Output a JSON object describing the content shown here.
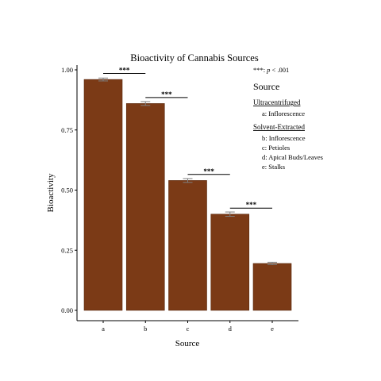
{
  "chart_data": {
    "type": "bar",
    "title": "Bioactivity of Cannabis Sources",
    "xlabel": "Source",
    "ylabel": "Bioactivity",
    "categories": [
      "a",
      "b",
      "c",
      "d",
      "e"
    ],
    "values": [
      0.96,
      0.86,
      0.54,
      0.4,
      0.195
    ],
    "error": [
      0.006,
      0.008,
      0.008,
      0.009,
      0.005
    ],
    "ylim": [
      0,
      1.02
    ],
    "yticks": [
      0.0,
      0.25,
      0.5,
      0.75,
      1.0
    ],
    "ytick_labels": [
      "0.00",
      "0.25",
      "0.50",
      "0.75",
      "1.00"
    ],
    "bar_color": "#7b3a16",
    "errorbar_color": "#7f7f7f",
    "grid": false,
    "significance": [
      {
        "from": "a",
        "to": "b",
        "level": 0.985,
        "label": "***"
      },
      {
        "from": "b",
        "to": "c",
        "level": 0.885,
        "label": "***"
      },
      {
        "from": "c",
        "to": "d",
        "level": 0.565,
        "label": "***"
      },
      {
        "from": "d",
        "to": "e",
        "level": 0.425,
        "label": "***"
      }
    ],
    "significance_note": {
      "stars": "***:",
      "italic": "p",
      "rest": " < .001"
    },
    "legend": {
      "position": "top-right",
      "title": "Source",
      "groups": [
        {
          "heading": "Ultracentrifuged",
          "items": [
            "a:  Inflorescence"
          ]
        },
        {
          "heading": "Solvent-Extracted",
          "items": [
            "b:  Inflorescence",
            "c:  Petioles",
            "d:  Apical Buds/Leaves",
            "e:  Stalks"
          ]
        }
      ]
    }
  }
}
